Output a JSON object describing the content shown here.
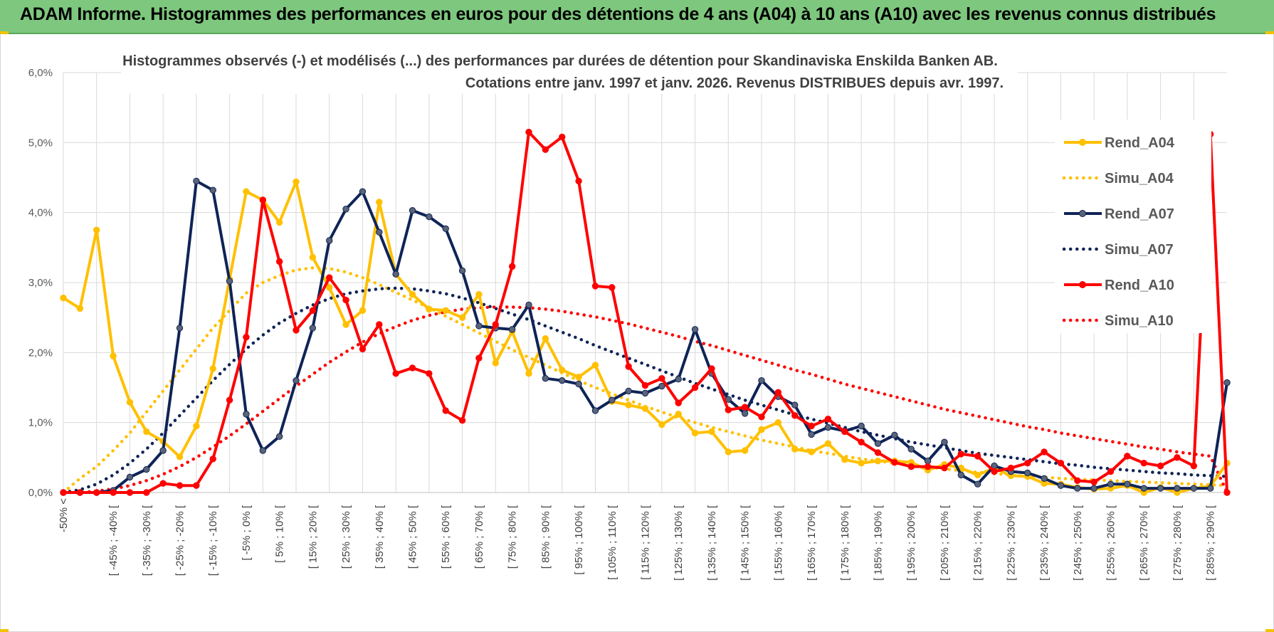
{
  "header": {
    "title": "ADAM Informe. Histogrammes des performances en euros pour des détentions de 4 ans (A04) à 10 ans (A10) avec les revenus connus distribués"
  },
  "chart_data": {
    "type": "line",
    "title": "Histogrammes observés (-) et modélisés (...) des performances par durées de détention pour Skandinaviska Enskilda Banken AB.",
    "subtitle": "Cotations entre janv. 1997 et janv. 2026. Revenus DISTRIBUES depuis avr. 1997.",
    "xlabel": "",
    "ylabel": "",
    "ylim": [
      0,
      6
    ],
    "y_ticks": [
      "0,0%",
      "1,0%",
      "2,0%",
      "3,0%",
      "4,0%",
      "5,0%",
      "6,0%"
    ],
    "x_tick_labels": [
      "-50% <",
      "[ -45% ; -40% [",
      "[ -35% ; -30% [",
      "[ -25% ; -20% [",
      "[ -15% ; -10% [",
      "[ -5% ; 0% [",
      "[ 5% ; 10% [",
      "[ 15% ; 20% [",
      "[ 25% ; 30% [",
      "[ 35% ; 40% [",
      "[ 45% ; 50% [",
      "[ 55% ; 60% [",
      "[ 65% ; 70% [",
      "[ 75% ; 80% [",
      "[ 85% ; 90% [",
      "[ 95% ; 100% [",
      "[ 105% ; 110% [",
      "[ 115% ; 120% [",
      "[ 125% ; 130% [",
      "[ 135% ; 140% [",
      "[ 145% ; 150% [",
      "[ 155% ; 160% [",
      "[ 165% ; 170% [",
      "[ 175% ; 180% [",
      "[ 185% ; 190% [",
      "[ 195% ; 200% [",
      "[ 205% ; 210% [",
      "[ 215% ; 220% [",
      "[ 225% ; 230% [",
      "[ 235% ; 240% [",
      "[ 245% ; 250% [",
      "[ 255% ; 260% [",
      "[ 265% ; 270% [",
      "[ 275% ; 280% [",
      "[ 285% ; 290% ["
    ],
    "grid": true,
    "legend_position": "right",
    "series": [
      {
        "name": "Rend_A04",
        "style": "solid-markers",
        "color": "#FFC000",
        "values": [
          2.78,
          2.63,
          3.75,
          1.95,
          1.29,
          0.87,
          0.73,
          0.51,
          0.95,
          1.77,
          3.05,
          4.3,
          4.18,
          3.86,
          4.44,
          3.36,
          2.93,
          2.4,
          2.6,
          4.15,
          3.12,
          2.83,
          2.62,
          2.6,
          2.5,
          2.83,
          1.85,
          2.3,
          1.7,
          2.2,
          1.75,
          1.65,
          1.82,
          1.3,
          1.25,
          1.2,
          0.97,
          1.12,
          0.85,
          0.87,
          0.58,
          0.6,
          0.9,
          1.0,
          0.62,
          0.58,
          0.7,
          0.47,
          0.42,
          0.45,
          0.45,
          0.43,
          0.32,
          0.4,
          0.35,
          0.25,
          0.35,
          0.24,
          0.23,
          0.13,
          0.12,
          0.07,
          0.05,
          0.06,
          0.1,
          0.0,
          0.07,
          0.0,
          0.06,
          0.09,
          0.42
        ]
      },
      {
        "name": "Simu_A04",
        "style": "dotted",
        "color": "#FFC000",
        "values": [
          0.0,
          0.2,
          0.37,
          0.6,
          0.85,
          1.15,
          1.45,
          1.75,
          2.05,
          2.35,
          2.6,
          2.85,
          3.0,
          3.1,
          3.18,
          3.21,
          3.2,
          3.15,
          3.07,
          2.97,
          2.86,
          2.75,
          2.64,
          2.52,
          2.4,
          2.28,
          2.16,
          2.04,
          1.93,
          1.82,
          1.71,
          1.6,
          1.5,
          1.41,
          1.32,
          1.23,
          1.15,
          1.07,
          1.0,
          0.93,
          0.87,
          0.81,
          0.75,
          0.7,
          0.65,
          0.6,
          0.56,
          0.52,
          0.48,
          0.45,
          0.42,
          0.39,
          0.36,
          0.34,
          0.31,
          0.29,
          0.27,
          0.25,
          0.23,
          0.22,
          0.2,
          0.19,
          0.18,
          0.17,
          0.16,
          0.15,
          0.14,
          0.13,
          0.12,
          0.11,
          0.1
        ]
      },
      {
        "name": "Rend_A07",
        "style": "solid-markers",
        "color": "#0F2457",
        "values": [
          0.0,
          0.0,
          0.0,
          0.03,
          0.22,
          0.33,
          0.6,
          2.35,
          4.45,
          4.32,
          3.02,
          1.12,
          0.6,
          0.8,
          1.6,
          2.35,
          3.6,
          4.05,
          4.3,
          3.72,
          3.12,
          4.03,
          3.94,
          3.77,
          3.17,
          2.38,
          2.35,
          2.33,
          2.68,
          1.63,
          1.6,
          1.55,
          1.17,
          1.32,
          1.45,
          1.42,
          1.52,
          1.62,
          2.33,
          1.7,
          1.33,
          1.13,
          1.6,
          1.37,
          1.25,
          0.83,
          0.93,
          0.88,
          0.95,
          0.7,
          0.82,
          0.62,
          0.45,
          0.72,
          0.25,
          0.12,
          0.38,
          0.3,
          0.28,
          0.2,
          0.1,
          0.06,
          0.06,
          0.12,
          0.12,
          0.06,
          0.06,
          0.06,
          0.06,
          0.06,
          1.57
        ]
      },
      {
        "name": "Simu_A07",
        "style": "dotted",
        "color": "#0F2457",
        "values": [
          0.0,
          0.04,
          0.12,
          0.25,
          0.42,
          0.62,
          0.85,
          1.1,
          1.35,
          1.6,
          1.83,
          2.05,
          2.25,
          2.42,
          2.56,
          2.68,
          2.77,
          2.84,
          2.88,
          2.91,
          2.92,
          2.91,
          2.88,
          2.84,
          2.78,
          2.71,
          2.63,
          2.55,
          2.47,
          2.38,
          2.29,
          2.2,
          2.1,
          2.01,
          1.92,
          1.83,
          1.74,
          1.65,
          1.56,
          1.48,
          1.4,
          1.32,
          1.25,
          1.18,
          1.11,
          1.05,
          0.99,
          0.93,
          0.87,
          0.82,
          0.77,
          0.72,
          0.68,
          0.64,
          0.6,
          0.56,
          0.53,
          0.5,
          0.47,
          0.44,
          0.41,
          0.39,
          0.36,
          0.34,
          0.32,
          0.3,
          0.28,
          0.27,
          0.25,
          0.24,
          0.23
        ]
      },
      {
        "name": "Rend_A10",
        "style": "solid-markers",
        "color": "#FF0000",
        "values": [
          0.0,
          0.0,
          0.0,
          0.0,
          0.0,
          0.0,
          0.13,
          0.1,
          0.1,
          0.48,
          1.32,
          2.22,
          4.18,
          3.3,
          2.32,
          2.6,
          3.07,
          2.75,
          2.05,
          2.4,
          1.7,
          1.78,
          1.7,
          1.17,
          1.03,
          1.92,
          2.4,
          3.23,
          5.15,
          4.9,
          5.08,
          4.45,
          2.95,
          2.93,
          1.8,
          1.53,
          1.63,
          1.28,
          1.5,
          1.77,
          1.18,
          1.22,
          1.08,
          1.43,
          1.1,
          0.95,
          1.05,
          0.87,
          0.72,
          0.57,
          0.43,
          0.37,
          0.37,
          0.35,
          0.55,
          0.52,
          0.3,
          0.35,
          0.42,
          0.58,
          0.42,
          0.17,
          0.15,
          0.3,
          0.52,
          0.42,
          0.38,
          0.5,
          0.38,
          5.12,
          0.0
        ]
      },
      {
        "name": "Simu_A10",
        "style": "dotted",
        "color": "#FF0000",
        "values": [
          0.0,
          0.0,
          0.02,
          0.05,
          0.1,
          0.17,
          0.26,
          0.37,
          0.5,
          0.65,
          0.81,
          0.98,
          1.16,
          1.34,
          1.52,
          1.69,
          1.86,
          2.01,
          2.15,
          2.27,
          2.37,
          2.46,
          2.53,
          2.58,
          2.62,
          2.64,
          2.65,
          2.65,
          2.64,
          2.62,
          2.59,
          2.55,
          2.51,
          2.46,
          2.41,
          2.35,
          2.29,
          2.23,
          2.16,
          2.1,
          2.03,
          1.96,
          1.89,
          1.82,
          1.75,
          1.69,
          1.62,
          1.55,
          1.49,
          1.43,
          1.37,
          1.31,
          1.25,
          1.19,
          1.14,
          1.09,
          1.04,
          0.99,
          0.94,
          0.9,
          0.85,
          0.81,
          0.77,
          0.73,
          0.69,
          0.65,
          0.62,
          0.58,
          0.55,
          0.52,
          0.0
        ]
      }
    ]
  }
}
